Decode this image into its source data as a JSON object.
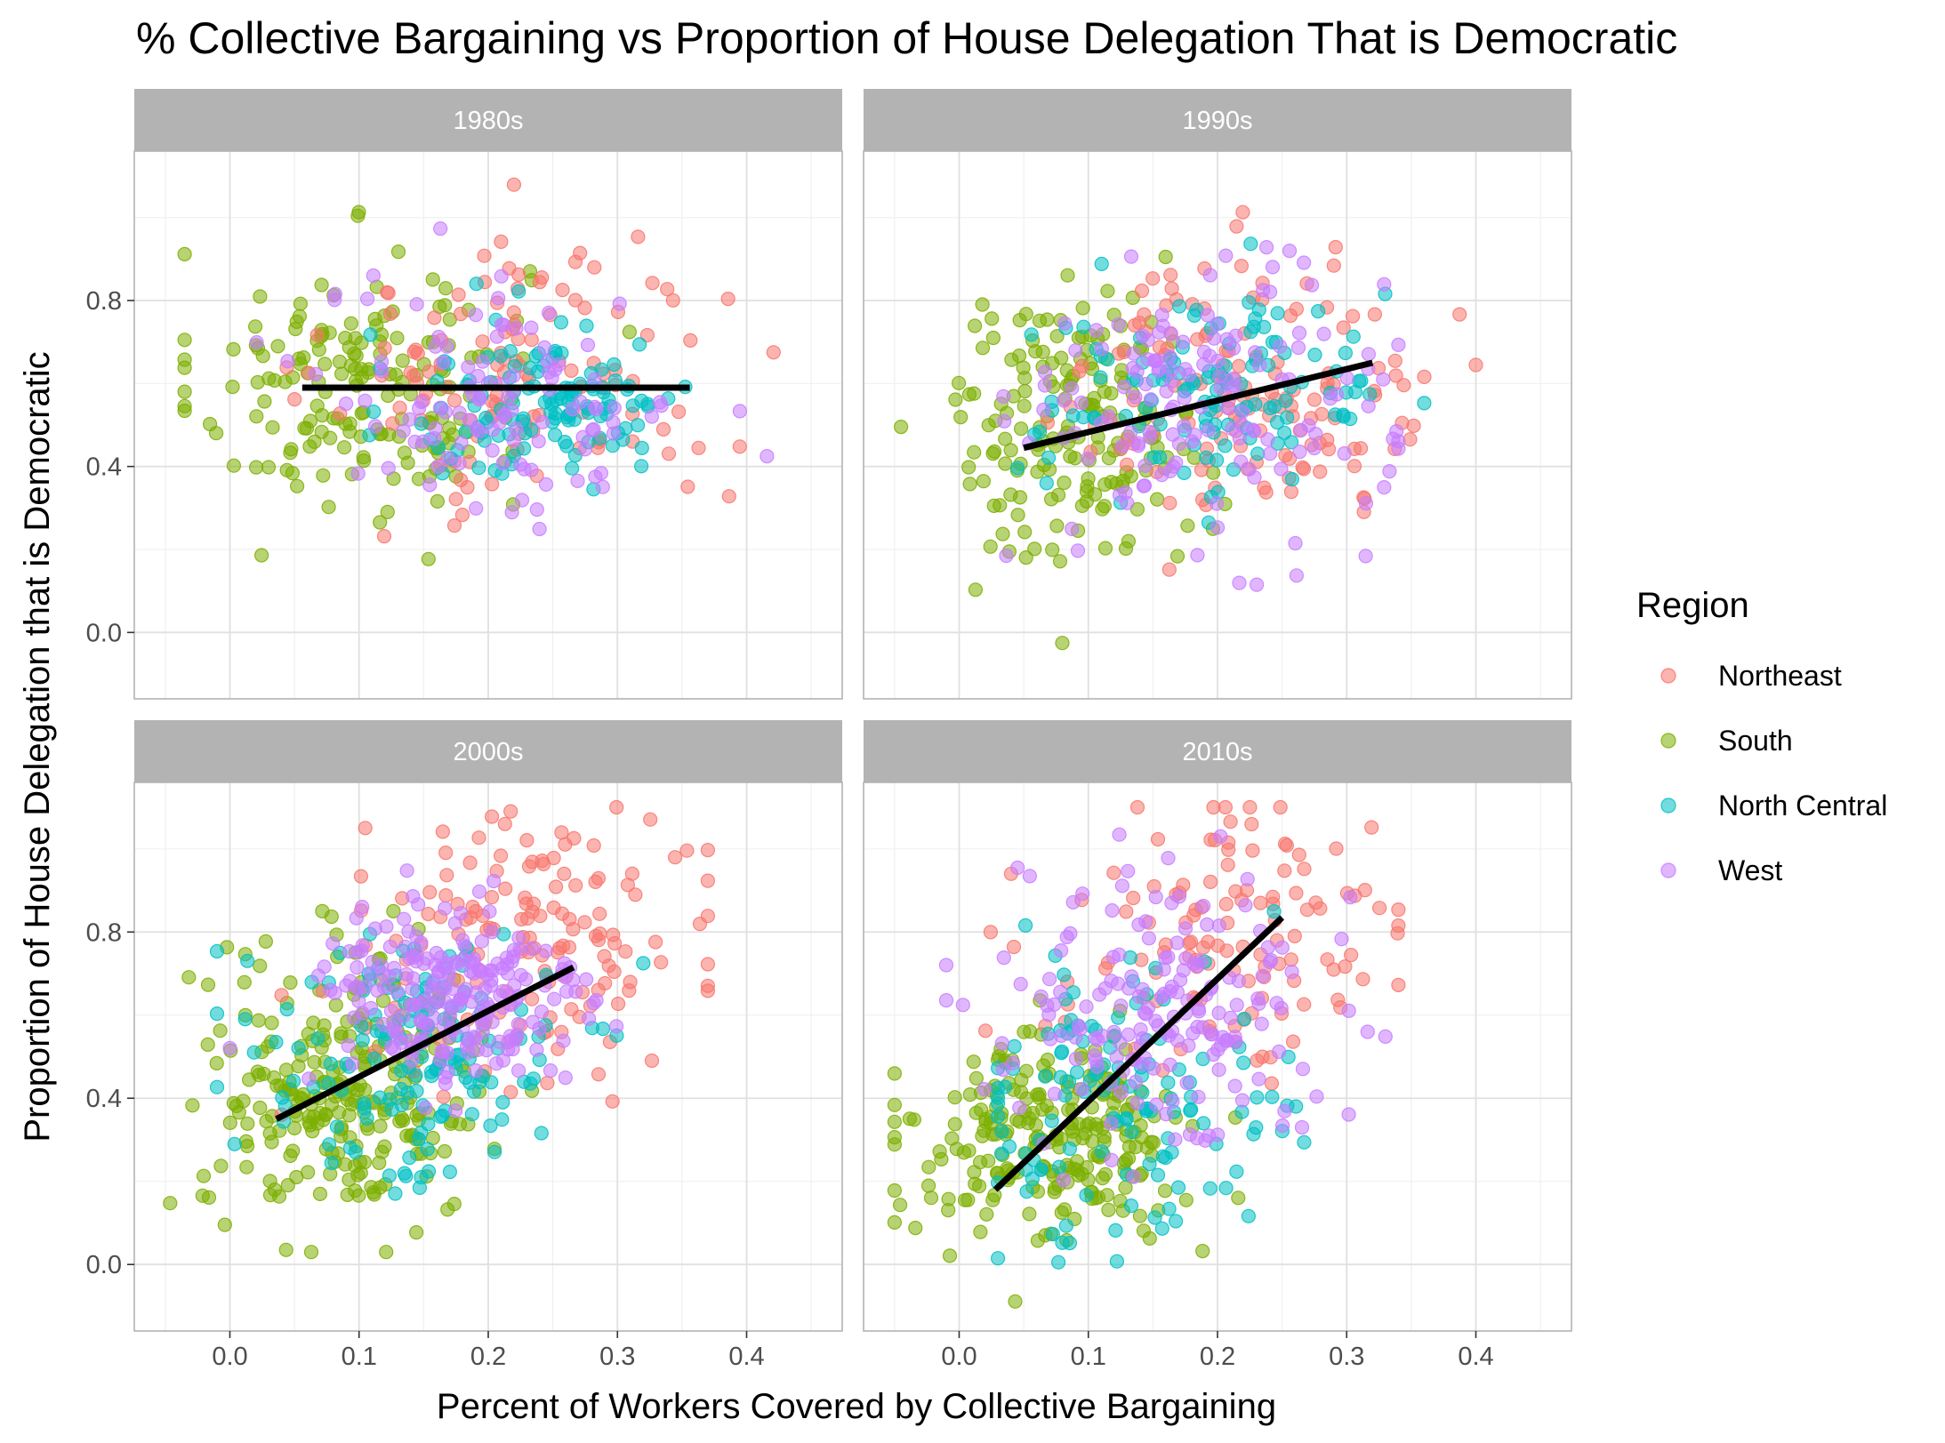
{
  "chart_data": {
    "type": "scatter",
    "title": "% Collective Bargaining vs Proportion of House Delegation That is Democratic",
    "xlabel": "Percent of Workers Covered by Collective Bargaining",
    "ylabel": "Proportion of House Delegation that is Democratic",
    "xlim": [
      -0.074,
      0.474
    ],
    "ylim": [
      -0.16,
      1.16
    ],
    "x_ticks": [
      "0.0",
      "0.1",
      "0.2",
      "0.3",
      "0.4"
    ],
    "y_ticks": [
      "0.0",
      "0.4",
      "0.8"
    ],
    "grid": true,
    "legend": {
      "title": "Region",
      "position": "right",
      "entries": [
        "Northeast",
        "South",
        "North Central",
        "West"
      ]
    },
    "colors": {
      "Northeast": "#F8766D",
      "South": "#7CAE00",
      "North Central": "#00BFC4",
      "West": "#C77CFF",
      "trend": "#000000",
      "strip": "#B3B3B3",
      "panel_border": "#B3B3B3",
      "grid_major": "#E0E0E0",
      "grid_minor": "#F0F0F0"
    },
    "facets": [
      {
        "label": "1980s",
        "trend": {
          "x": [
            0.056,
            0.356
          ],
          "y": [
            0.59,
            0.59
          ]
        },
        "clusters": [
          {
            "region": "South",
            "cx": 0.1,
            "cy": 0.6,
            "sx": 0.065,
            "sy": 0.16,
            "n": 175,
            "xmin": -0.035,
            "xmax": 0.35,
            "ymin": 0.0,
            "ymax": 1.1
          },
          {
            "region": "Northeast",
            "cx": 0.23,
            "cy": 0.62,
            "sx": 0.075,
            "sy": 0.17,
            "n": 120,
            "xmin": 0.03,
            "xmax": 0.455,
            "ymin": -0.09,
            "ymax": 1.1
          },
          {
            "region": "North Central",
            "cx": 0.25,
            "cy": 0.56,
            "sx": 0.055,
            "sy": 0.1,
            "n": 125,
            "xmin": 0.035,
            "xmax": 0.42,
            "ymin": -0.05,
            "ymax": 1.08
          },
          {
            "region": "West",
            "cx": 0.21,
            "cy": 0.55,
            "sx": 0.07,
            "sy": 0.14,
            "n": 110,
            "xmin": 0.0,
            "xmax": 0.43,
            "ymin": -0.08,
            "ymax": 1.08
          }
        ]
      },
      {
        "label": "1990s",
        "trend": {
          "x": [
            0.05,
            0.32
          ],
          "y": [
            0.445,
            0.65
          ]
        },
        "clusters": [
          {
            "region": "South",
            "cx": 0.09,
            "cy": 0.5,
            "sx": 0.05,
            "sy": 0.16,
            "n": 180,
            "xmin": -0.045,
            "xmax": 0.23,
            "ymin": -0.09,
            "ymax": 1.08
          },
          {
            "region": "Northeast",
            "cx": 0.23,
            "cy": 0.6,
            "sx": 0.07,
            "sy": 0.16,
            "n": 140,
            "xmin": 0.03,
            "xmax": 0.4,
            "ymin": -0.05,
            "ymax": 1.1
          },
          {
            "region": "North Central",
            "cx": 0.2,
            "cy": 0.57,
            "sx": 0.07,
            "sy": 0.13,
            "n": 125,
            "xmin": 0.0,
            "xmax": 0.36,
            "ymin": -0.09,
            "ymax": 1.08
          },
          {
            "region": "West",
            "cx": 0.19,
            "cy": 0.55,
            "sx": 0.07,
            "sy": 0.16,
            "n": 150,
            "xmin": -0.03,
            "xmax": 0.34,
            "ymin": -0.06,
            "ymax": 1.05
          }
        ]
      },
      {
        "label": "2000s",
        "trend": {
          "x": [
            0.036,
            0.266
          ],
          "y": [
            0.35,
            0.715
          ]
        },
        "clusters": [
          {
            "region": "South",
            "cx": 0.09,
            "cy": 0.42,
            "sx": 0.055,
            "sy": 0.16,
            "n": 260,
            "xmin": -0.05,
            "xmax": 0.24,
            "ymin": 0.03,
            "ymax": 0.85
          },
          {
            "region": "Northeast",
            "cx": 0.24,
            "cy": 0.78,
            "sx": 0.07,
            "sy": 0.15,
            "n": 150,
            "xmin": 0.04,
            "xmax": 0.37,
            "ymin": -0.09,
            "ymax": 1.1
          },
          {
            "region": "North Central",
            "cx": 0.14,
            "cy": 0.5,
            "sx": 0.06,
            "sy": 0.16,
            "n": 150,
            "xmin": -0.01,
            "xmax": 0.32,
            "ymin": -0.09,
            "ymax": 1.05
          },
          {
            "region": "West",
            "cx": 0.17,
            "cy": 0.64,
            "sx": 0.055,
            "sy": 0.12,
            "n": 220,
            "xmin": 0.0,
            "xmax": 0.33,
            "ymin": -0.09,
            "ymax": 1.1
          }
        ]
      },
      {
        "label": "2010s",
        "trend": {
          "x": [
            0.028,
            0.25
          ],
          "y": [
            0.18,
            0.835
          ]
        },
        "clusters": [
          {
            "region": "South",
            "cx": 0.07,
            "cy": 0.3,
            "sx": 0.055,
            "sy": 0.12,
            "n": 240,
            "xmin": -0.05,
            "xmax": 0.23,
            "ymin": -0.09,
            "ymax": 1.06
          },
          {
            "region": "Northeast",
            "cx": 0.21,
            "cy": 0.78,
            "sx": 0.075,
            "sy": 0.17,
            "n": 120,
            "xmin": 0.02,
            "xmax": 0.34,
            "ymin": 0.3,
            "ymax": 1.1
          },
          {
            "region": "North Central",
            "cx": 0.13,
            "cy": 0.38,
            "sx": 0.06,
            "sy": 0.17,
            "n": 130,
            "xmin": 0.03,
            "xmax": 0.27,
            "ymin": -0.08,
            "ymax": 0.85
          },
          {
            "region": "West",
            "cx": 0.16,
            "cy": 0.62,
            "sx": 0.06,
            "sy": 0.17,
            "n": 180,
            "xmin": -0.01,
            "xmax": 0.33,
            "ymin": -0.09,
            "ymax": 1.05
          }
        ]
      }
    ]
  }
}
